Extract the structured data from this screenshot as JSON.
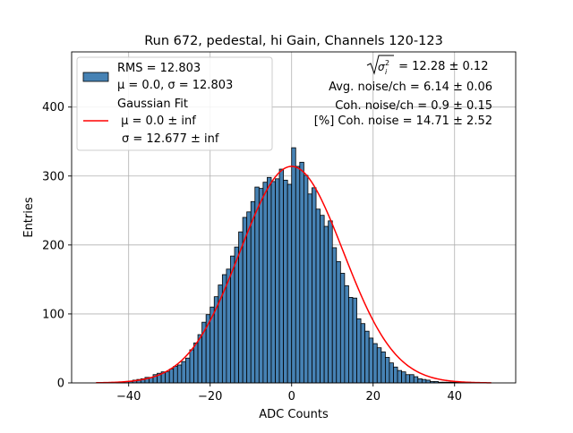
{
  "chart_data": {
    "type": "bar",
    "title": "Run 672, pedestal, hi Gain, Channels 120-123",
    "xlabel": "ADC Counts",
    "ylabel": "Entries",
    "xlim": [
      -54,
      55
    ],
    "ylim": [
      0,
      480
    ],
    "xticks": [
      -40,
      -20,
      0,
      20,
      40
    ],
    "yticks": [
      0,
      100,
      200,
      300,
      400
    ],
    "grid": true,
    "legend_position": "top-left",
    "bin_width": 1,
    "bin_start": -48,
    "histogram_values": [
      0,
      0,
      0,
      0,
      0,
      1,
      1,
      2,
      2,
      4,
      5,
      6,
      8,
      8,
      12,
      14,
      16,
      16,
      20,
      24,
      26,
      31,
      36,
      48,
      58,
      70,
      88,
      99,
      110,
      125,
      142,
      157,
      165,
      184,
      197,
      219,
      240,
      248,
      263,
      284,
      282,
      291,
      298,
      292,
      296,
      310,
      294,
      288,
      341,
      314,
      320,
      301,
      274,
      283,
      252,
      243,
      227,
      235,
      196,
      176,
      159,
      141,
      124,
      123,
      93,
      86,
      75,
      65,
      57,
      51,
      45,
      37,
      29,
      23,
      18,
      16,
      12,
      12,
      9,
      6,
      5,
      4,
      2,
      2,
      1,
      1,
      1,
      1,
      1,
      1,
      1,
      1,
      0,
      0,
      0,
      0,
      0
    ],
    "gaussian_fit": {
      "mu": 0.0,
      "sigma": 12.677,
      "amplitude": 314,
      "x_range": [
        -48,
        49
      ]
    },
    "colors": {
      "bars": "#4682b4",
      "bar_edge": "#000000",
      "fit_line": "#ff0000",
      "grid": "#b0b0b0"
    },
    "legend": {
      "histogram_entry": [
        "RMS = 12.803",
        "μ = 0.0, σ = 12.803"
      ],
      "fit_entry": [
        "Gaussian Fit",
        " μ = 0.0 ± inf",
        "σ = 12.677 ± inf"
      ]
    },
    "annotations": {
      "sqrt_value": " = 12.28 ± 0.12",
      "avg_noise": "Avg. noise/ch = 6.14 ± 0.06",
      "coh_noise": "Coh. noise/ch = 0.9 ± 0.15",
      "coh_noise_pct": "[%] Coh. noise = 14.71 ± 2.52"
    }
  }
}
